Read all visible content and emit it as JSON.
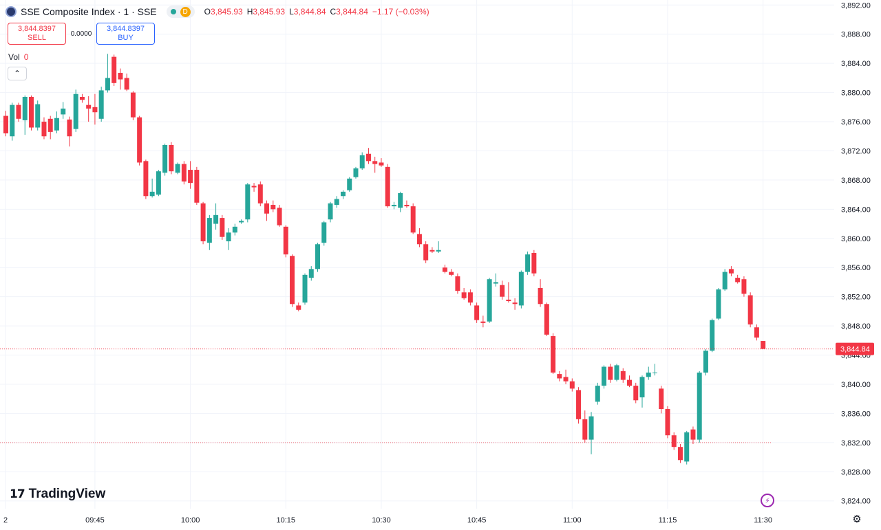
{
  "header": {
    "title": "SSE Composite Index · 1 · SSE",
    "status_letter": "D",
    "ohlc": [
      {
        "key": "O",
        "value": "3,845.93"
      },
      {
        "key": "H",
        "value": "3,845.93"
      },
      {
        "key": "L",
        "value": "3,844.84"
      },
      {
        "key": "C",
        "value": "3,844.84"
      }
    ],
    "change": "−1.17 (−0.03%)"
  },
  "trade": {
    "sell_price": "3,844.8397",
    "sell_label": "SELL",
    "spread": "0.0000",
    "buy_price": "3,844.8397",
    "buy_label": "BUY"
  },
  "volume": {
    "label": "Vol",
    "value": "0"
  },
  "branding": {
    "name": "TradingView",
    "logo_mark": "17"
  },
  "icons": {
    "collapse": "chevron-up-icon",
    "settings": "gear-icon",
    "alert": "lightning-icon"
  },
  "colors": {
    "up": "#26a69a",
    "down": "#f23645",
    "grid": "#f0f3fa",
    "price_line": "#f23645"
  },
  "chart_data": {
    "type": "candlestick",
    "y_range": [
      3823.5,
      3892.5
    ],
    "y_ticks": [
      "3,824.00",
      "3,828.00",
      "3,832.00",
      "3,836.00",
      "3,840.00",
      "3,844.00",
      "3,848.00",
      "3,852.00",
      "3,856.00",
      "3,860.00",
      "3,864.00",
      "3,868.00",
      "3,872.00",
      "3,876.00",
      "3,880.00",
      "3,884.00",
      "3,888.00",
      "3,892.00"
    ],
    "x_ticks": [
      "2",
      "09:45",
      "10:00",
      "10:15",
      "10:30",
      "10:45",
      "11:00",
      "11:15",
      "11:30"
    ],
    "current_price": 3844.84,
    "current_price_label": "3,844.84",
    "reference_price": 3832.0,
    "candles": [
      {
        "t": "09:31",
        "o": 3876.8,
        "h": 3877.5,
        "l": 3874.0,
        "c": 3874.4
      },
      {
        "t": "09:32",
        "o": 3874.0,
        "h": 3878.6,
        "l": 3873.4,
        "c": 3878.3
      },
      {
        "t": "09:33",
        "o": 3878.3,
        "h": 3878.6,
        "l": 3876.0,
        "c": 3876.4
      },
      {
        "t": "09:34",
        "o": 3876.2,
        "h": 3879.6,
        "l": 3874.2,
        "c": 3879.4
      },
      {
        "t": "09:35",
        "o": 3879.4,
        "h": 3879.6,
        "l": 3874.8,
        "c": 3875.2
      },
      {
        "t": "09:36",
        "o": 3875.2,
        "h": 3878.9,
        "l": 3874.8,
        "c": 3878.4
      },
      {
        "t": "09:37",
        "o": 3876.0,
        "h": 3876.6,
        "l": 3873.6,
        "c": 3874.0
      },
      {
        "t": "09:38",
        "o": 3876.4,
        "h": 3876.8,
        "l": 3873.6,
        "c": 3874.6
      },
      {
        "t": "09:39",
        "o": 3874.8,
        "h": 3877.4,
        "l": 3874.4,
        "c": 3876.5
      },
      {
        "t": "09:40",
        "o": 3877.0,
        "h": 3878.7,
        "l": 3876.4,
        "c": 3877.8
      },
      {
        "t": "09:41",
        "o": 3876.3,
        "h": 3876.7,
        "l": 3872.6,
        "c": 3874.0
      },
      {
        "t": "09:42",
        "o": 3875.0,
        "h": 3880.4,
        "l": 3874.6,
        "c": 3879.8
      },
      {
        "t": "09:43",
        "o": 3879.4,
        "h": 3879.8,
        "l": 3878.6,
        "c": 3879.0
      },
      {
        "t": "09:44",
        "o": 3878.3,
        "h": 3879.5,
        "l": 3876.0,
        "c": 3877.8
      },
      {
        "t": "09:45",
        "o": 3878.0,
        "h": 3879.8,
        "l": 3875.6,
        "c": 3877.3
      },
      {
        "t": "09:46",
        "o": 3876.4,
        "h": 3880.8,
        "l": 3876.0,
        "c": 3880.3
      },
      {
        "t": "09:47",
        "o": 3880.3,
        "h": 3885.3,
        "l": 3880.0,
        "c": 3882.0
      },
      {
        "t": "09:48",
        "o": 3884.9,
        "h": 3885.2,
        "l": 3880.9,
        "c": 3881.3
      },
      {
        "t": "09:49",
        "o": 3882.7,
        "h": 3883.3,
        "l": 3880.4,
        "c": 3881.8
      },
      {
        "t": "09:50",
        "o": 3882.0,
        "h": 3882.6,
        "l": 3880.2,
        "c": 3880.4
      },
      {
        "t": "09:51",
        "o": 3880.0,
        "h": 3880.2,
        "l": 3876.2,
        "c": 3876.6
      },
      {
        "t": "09:52",
        "o": 3876.6,
        "h": 3876.8,
        "l": 3870.0,
        "c": 3870.4
      },
      {
        "t": "09:53",
        "o": 3870.6,
        "h": 3870.8,
        "l": 3865.4,
        "c": 3865.8
      },
      {
        "t": "09:54",
        "o": 3865.8,
        "h": 3868.2,
        "l": 3865.6,
        "c": 3866.4
      },
      {
        "t": "09:55",
        "o": 3866.0,
        "h": 3869.4,
        "l": 3865.8,
        "c": 3869.2
      },
      {
        "t": "09:56",
        "o": 3869.0,
        "h": 3873.0,
        "l": 3868.6,
        "c": 3872.8
      },
      {
        "t": "09:57",
        "o": 3872.8,
        "h": 3873.2,
        "l": 3868.8,
        "c": 3869.2
      },
      {
        "t": "09:58",
        "o": 3869.0,
        "h": 3870.4,
        "l": 3868.8,
        "c": 3870.2
      },
      {
        "t": "09:59",
        "o": 3870.2,
        "h": 3870.6,
        "l": 3867.4,
        "c": 3867.8
      },
      {
        "t": "10:00",
        "o": 3869.4,
        "h": 3870.6,
        "l": 3866.8,
        "c": 3867.6
      },
      {
        "t": "10:01",
        "o": 3869.4,
        "h": 3869.8,
        "l": 3864.6,
        "c": 3864.9
      },
      {
        "t": "10:02",
        "o": 3864.8,
        "h": 3865.0,
        "l": 3859.2,
        "c": 3859.6
      },
      {
        "t": "10:03",
        "o": 3859.4,
        "h": 3863.2,
        "l": 3858.4,
        "c": 3862.8
      },
      {
        "t": "10:04",
        "o": 3862.0,
        "h": 3864.8,
        "l": 3861.2,
        "c": 3863.2
      },
      {
        "t": "10:05",
        "o": 3862.8,
        "h": 3863.2,
        "l": 3859.8,
        "c": 3860.2
      },
      {
        "t": "10:06",
        "o": 3859.6,
        "h": 3861.4,
        "l": 3858.4,
        "c": 3860.8
      },
      {
        "t": "10:07",
        "o": 3860.8,
        "h": 3862.0,
        "l": 3860.4,
        "c": 3861.6
      },
      {
        "t": "10:08",
        "o": 3862.2,
        "h": 3862.6,
        "l": 3862.0,
        "c": 3862.4
      },
      {
        "t": "10:09",
        "o": 3862.6,
        "h": 3867.6,
        "l": 3862.2,
        "c": 3867.4
      },
      {
        "t": "10:10",
        "o": 3867.2,
        "h": 3867.6,
        "l": 3866.4,
        "c": 3867.0
      },
      {
        "t": "10:11",
        "o": 3867.4,
        "h": 3867.8,
        "l": 3864.4,
        "c": 3864.8
      },
      {
        "t": "10:12",
        "o": 3864.8,
        "h": 3865.2,
        "l": 3862.4,
        "c": 3863.4
      },
      {
        "t": "10:13",
        "o": 3864.6,
        "h": 3865.2,
        "l": 3863.6,
        "c": 3864.0
      },
      {
        "t": "10:14",
        "o": 3864.2,
        "h": 3864.6,
        "l": 3861.6,
        "c": 3861.8
      },
      {
        "t": "10:15",
        "o": 3861.6,
        "h": 3861.8,
        "l": 3857.4,
        "c": 3857.8
      },
      {
        "t": "10:16",
        "o": 3857.6,
        "h": 3857.8,
        "l": 3850.6,
        "c": 3851.0
      },
      {
        "t": "10:17",
        "o": 3850.8,
        "h": 3851.2,
        "l": 3850.0,
        "c": 3850.2
      },
      {
        "t": "10:18",
        "o": 3851.2,
        "h": 3855.2,
        "l": 3850.9,
        "c": 3855.0
      },
      {
        "t": "10:19",
        "o": 3854.6,
        "h": 3856.2,
        "l": 3854.2,
        "c": 3855.8
      },
      {
        "t": "10:20",
        "o": 3855.8,
        "h": 3859.4,
        "l": 3855.4,
        "c": 3859.2
      },
      {
        "t": "10:21",
        "o": 3859.4,
        "h": 3862.4,
        "l": 3859.0,
        "c": 3862.2
      },
      {
        "t": "10:22",
        "o": 3862.6,
        "h": 3865.0,
        "l": 3862.2,
        "c": 3864.8
      },
      {
        "t": "10:23",
        "o": 3864.6,
        "h": 3865.8,
        "l": 3864.2,
        "c": 3865.4
      },
      {
        "t": "10:24",
        "o": 3865.8,
        "h": 3866.6,
        "l": 3865.4,
        "c": 3866.4
      },
      {
        "t": "10:25",
        "o": 3866.6,
        "h": 3868.4,
        "l": 3866.4,
        "c": 3868.2
      },
      {
        "t": "10:26",
        "o": 3868.4,
        "h": 3869.8,
        "l": 3868.2,
        "c": 3869.6
      },
      {
        "t": "10:27",
        "o": 3869.6,
        "h": 3871.8,
        "l": 3869.4,
        "c": 3871.4
      },
      {
        "t": "10:28",
        "o": 3871.6,
        "h": 3872.4,
        "l": 3870.2,
        "c": 3870.6
      },
      {
        "t": "10:29",
        "o": 3870.6,
        "h": 3871.2,
        "l": 3869.0,
        "c": 3870.2
      },
      {
        "t": "10:30",
        "o": 3870.4,
        "h": 3871.0,
        "l": 3869.8,
        "c": 3870.0
      },
      {
        "t": "10:31",
        "o": 3869.8,
        "h": 3870.2,
        "l": 3864.2,
        "c": 3864.4
      },
      {
        "t": "10:32",
        "o": 3864.4,
        "h": 3865.0,
        "l": 3864.0,
        "c": 3864.6
      },
      {
        "t": "10:33",
        "o": 3864.2,
        "h": 3866.4,
        "l": 3863.6,
        "c": 3866.2
      },
      {
        "t": "10:34",
        "o": 3864.6,
        "h": 3865.2,
        "l": 3864.2,
        "c": 3864.4
      },
      {
        "t": "10:35",
        "o": 3864.4,
        "h": 3864.8,
        "l": 3860.6,
        "c": 3860.8
      },
      {
        "t": "10:36",
        "o": 3860.6,
        "h": 3861.4,
        "l": 3858.8,
        "c": 3859.2
      },
      {
        "t": "10:37",
        "o": 3859.2,
        "h": 3859.6,
        "l": 3856.6,
        "c": 3857.0
      },
      {
        "t": "10:38",
        "o": 3858.4,
        "h": 3858.8,
        "l": 3858.0,
        "c": 3858.2
      },
      {
        "t": "10:39",
        "o": 3858.2,
        "h": 3859.6,
        "l": 3858.0,
        "c": 3858.4
      },
      {
        "t": "10:40",
        "o": 3856.0,
        "h": 3856.4,
        "l": 3855.2,
        "c": 3855.4
      },
      {
        "t": "10:41",
        "o": 3855.4,
        "h": 3855.8,
        "l": 3854.8,
        "c": 3855.0
      },
      {
        "t": "10:42",
        "o": 3854.8,
        "h": 3855.2,
        "l": 3852.4,
        "c": 3852.8
      },
      {
        "t": "10:43",
        "o": 3852.6,
        "h": 3853.2,
        "l": 3851.6,
        "c": 3851.8
      },
      {
        "t": "10:44",
        "o": 3852.6,
        "h": 3853.0,
        "l": 3850.8,
        "c": 3851.2
      },
      {
        "t": "10:45",
        "o": 3850.8,
        "h": 3851.2,
        "l": 3848.4,
        "c": 3848.8
      },
      {
        "t": "10:46",
        "o": 3848.6,
        "h": 3849.4,
        "l": 3847.8,
        "c": 3848.4
      },
      {
        "t": "10:47",
        "o": 3848.6,
        "h": 3854.6,
        "l": 3848.4,
        "c": 3854.4
      },
      {
        "t": "10:48",
        "o": 3853.8,
        "h": 3855.2,
        "l": 3853.4,
        "c": 3854.0
      },
      {
        "t": "10:49",
        "o": 3853.6,
        "h": 3854.2,
        "l": 3851.6,
        "c": 3852.0
      },
      {
        "t": "10:50",
        "o": 3851.6,
        "h": 3854.0,
        "l": 3851.2,
        "c": 3851.4
      },
      {
        "t": "10:51",
        "o": 3851.2,
        "h": 3851.8,
        "l": 3850.2,
        "c": 3851.0
      },
      {
        "t": "10:52",
        "o": 3850.8,
        "h": 3855.6,
        "l": 3850.4,
        "c": 3855.4
      },
      {
        "t": "10:53",
        "o": 3855.4,
        "h": 3858.2,
        "l": 3855.0,
        "c": 3857.8
      },
      {
        "t": "10:54",
        "o": 3858.0,
        "h": 3858.4,
        "l": 3854.8,
        "c": 3855.2
      },
      {
        "t": "10:55",
        "o": 3853.2,
        "h": 3854.4,
        "l": 3850.6,
        "c": 3851.0
      },
      {
        "t": "10:56",
        "o": 3851.0,
        "h": 3851.2,
        "l": 3846.6,
        "c": 3846.8
      },
      {
        "t": "10:57",
        "o": 3846.6,
        "h": 3847.0,
        "l": 3841.4,
        "c": 3841.6
      },
      {
        "t": "10:58",
        "o": 3841.4,
        "h": 3841.8,
        "l": 3840.4,
        "c": 3840.8
      },
      {
        "t": "10:59",
        "o": 3841.0,
        "h": 3842.0,
        "l": 3840.0,
        "c": 3840.4
      },
      {
        "t": "11:00",
        "o": 3840.4,
        "h": 3840.8,
        "l": 3839.0,
        "c": 3839.4
      },
      {
        "t": "11:01",
        "o": 3839.2,
        "h": 3839.6,
        "l": 3834.6,
        "c": 3835.2
      },
      {
        "t": "11:02",
        "o": 3835.2,
        "h": 3836.4,
        "l": 3832.0,
        "c": 3832.4
      },
      {
        "t": "11:03",
        "o": 3832.4,
        "h": 3836.2,
        "l": 3830.4,
        "c": 3835.6
      },
      {
        "t": "11:04",
        "o": 3837.6,
        "h": 3840.2,
        "l": 3837.2,
        "c": 3839.8
      },
      {
        "t": "11:05",
        "o": 3839.8,
        "h": 3842.6,
        "l": 3839.4,
        "c": 3842.4
      },
      {
        "t": "11:06",
        "o": 3842.4,
        "h": 3842.8,
        "l": 3840.2,
        "c": 3840.6
      },
      {
        "t": "11:07",
        "o": 3840.6,
        "h": 3842.8,
        "l": 3840.4,
        "c": 3842.6
      },
      {
        "t": "11:08",
        "o": 3841.8,
        "h": 3842.2,
        "l": 3840.2,
        "c": 3840.6
      },
      {
        "t": "11:09",
        "o": 3840.6,
        "h": 3841.2,
        "l": 3839.6,
        "c": 3839.8
      },
      {
        "t": "11:10",
        "o": 3839.8,
        "h": 3840.2,
        "l": 3837.4,
        "c": 3837.8
      },
      {
        "t": "11:11",
        "o": 3838.2,
        "h": 3841.2,
        "l": 3836.8,
        "c": 3841.0
      },
      {
        "t": "11:12",
        "o": 3841.0,
        "h": 3842.4,
        "l": 3840.6,
        "c": 3841.6
      },
      {
        "t": "11:13",
        "o": 3841.6,
        "h": 3842.8,
        "l": 3841.2,
        "c": 3841.6
      },
      {
        "t": "11:14",
        "o": 3839.4,
        "h": 3839.8,
        "l": 3836.0,
        "c": 3836.6
      },
      {
        "t": "11:15",
        "o": 3836.6,
        "h": 3837.0,
        "l": 3832.6,
        "c": 3833.0
      },
      {
        "t": "11:16",
        "o": 3833.0,
        "h": 3833.4,
        "l": 3831.0,
        "c": 3831.4
      },
      {
        "t": "11:17",
        "o": 3831.4,
        "h": 3831.8,
        "l": 3829.2,
        "c": 3829.6
      },
      {
        "t": "11:18",
        "o": 3829.4,
        "h": 3833.6,
        "l": 3829.0,
        "c": 3833.4
      },
      {
        "t": "11:19",
        "o": 3833.8,
        "h": 3834.2,
        "l": 3831.8,
        "c": 3832.4
      },
      {
        "t": "11:20",
        "o": 3832.4,
        "h": 3841.8,
        "l": 3832.0,
        "c": 3841.6
      },
      {
        "t": "11:21",
        "o": 3841.6,
        "h": 3844.8,
        "l": 3841.2,
        "c": 3844.6
      },
      {
        "t": "11:22",
        "o": 3844.6,
        "h": 3849.0,
        "l": 3844.4,
        "c": 3848.8
      },
      {
        "t": "11:23",
        "o": 3849.0,
        "h": 3853.2,
        "l": 3848.8,
        "c": 3853.0
      },
      {
        "t": "11:24",
        "o": 3853.0,
        "h": 3855.8,
        "l": 3852.8,
        "c": 3855.4
      },
      {
        "t": "11:25",
        "o": 3855.8,
        "h": 3856.2,
        "l": 3854.8,
        "c": 3855.2
      },
      {
        "t": "11:26",
        "o": 3854.6,
        "h": 3855.0,
        "l": 3853.8,
        "c": 3854.0
      },
      {
        "t": "11:27",
        "o": 3854.4,
        "h": 3854.8,
        "l": 3852.0,
        "c": 3852.4
      },
      {
        "t": "11:28",
        "o": 3852.2,
        "h": 3852.6,
        "l": 3847.8,
        "c": 3848.2
      },
      {
        "t": "11:29",
        "o": 3847.8,
        "h": 3848.2,
        "l": 3846.0,
        "c": 3846.4
      },
      {
        "t": "11:30",
        "o": 3845.93,
        "h": 3845.93,
        "l": 3844.84,
        "c": 3844.84
      }
    ]
  }
}
